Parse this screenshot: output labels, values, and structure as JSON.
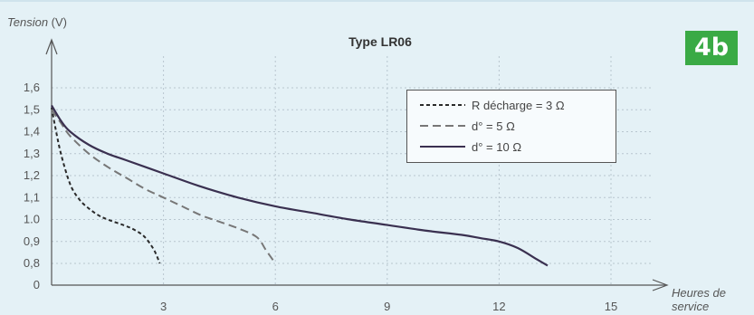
{
  "badge": "4b",
  "chart_data": {
    "type": "line",
    "title": "Type LR06",
    "ylabel_italic": "Tension",
    "ylabel_unit": " (V)",
    "xlabel_line1": "Heures de",
    "xlabel_line2": "service",
    "x_ticks": [
      "3",
      "6",
      "9",
      "12",
      "15"
    ],
    "y_ticks": [
      "1,6",
      "1,5",
      "1,4",
      "1,3",
      "1,2",
      "1,1",
      "1.0",
      "0,9",
      "0,8",
      "0"
    ],
    "xlim": [
      0,
      15
    ],
    "grid": true,
    "legend_position": "top-right",
    "series": [
      {
        "name": "R décharge = 3 Ω",
        "style": "dotted",
        "color": "#2a2a2a",
        "x": [
          0,
          0.1,
          0.25,
          0.5,
          0.75,
          1.0,
          1.25,
          1.5,
          2.0,
          2.25,
          2.5,
          2.75,
          2.9
        ],
        "y": [
          1.51,
          1.42,
          1.3,
          1.16,
          1.09,
          1.05,
          1.02,
          1.0,
          0.97,
          0.95,
          0.92,
          0.86,
          0.8
        ]
      },
      {
        "name": "d° = 5 Ω",
        "style": "dashed",
        "color": "#777777",
        "x": [
          0,
          0.25,
          0.5,
          1.0,
          1.5,
          2.0,
          2.5,
          3.0,
          3.5,
          4.0,
          4.5,
          5.0,
          5.5,
          5.75,
          6.0
        ],
        "y": [
          1.5,
          1.44,
          1.38,
          1.3,
          1.24,
          1.19,
          1.14,
          1.1,
          1.06,
          1.02,
          0.99,
          0.96,
          0.92,
          0.86,
          0.8
        ]
      },
      {
        "name": "d° = 10 Ω",
        "style": "solid",
        "color": "#3a3050",
        "x": [
          0,
          0.25,
          0.5,
          1.0,
          1.5,
          2.0,
          3.0,
          4.0,
          5.0,
          6.0,
          7.0,
          8.0,
          9.0,
          10.0,
          11.0,
          11.5,
          12.0,
          12.5,
          13.0,
          13.3
        ],
        "y": [
          1.52,
          1.45,
          1.4,
          1.34,
          1.3,
          1.27,
          1.21,
          1.15,
          1.1,
          1.06,
          1.03,
          1.0,
          0.975,
          0.95,
          0.93,
          0.915,
          0.9,
          0.87,
          0.82,
          0.79
        ]
      }
    ]
  }
}
